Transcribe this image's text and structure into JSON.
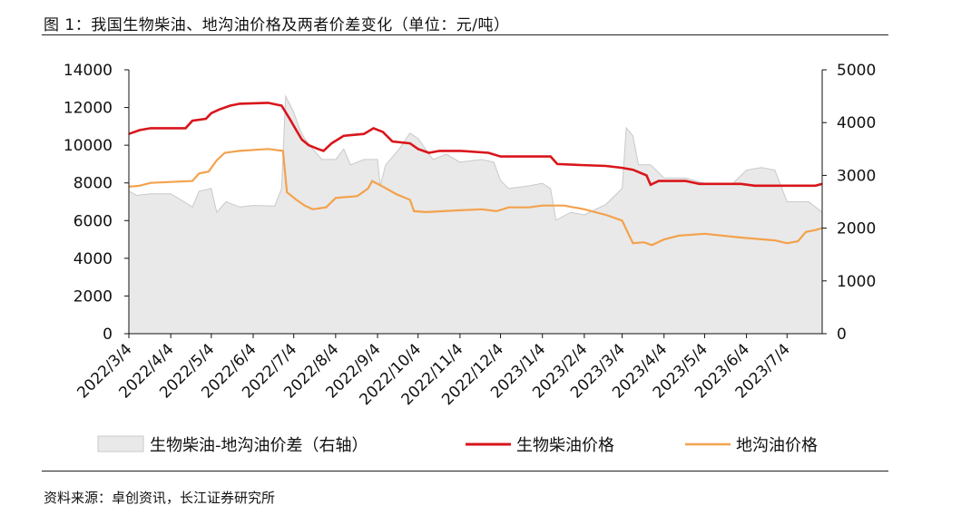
{
  "header": {
    "title": "图 1：我国生物柴油、地沟油价格及两者价差变化（单位：元/吨）"
  },
  "footer": {
    "source": "资料来源：卓创资讯，长江证券研究所"
  },
  "colors": {
    "biodiesel": "#d9151b",
    "waste_oil": "#f3a24d",
    "spread_fill": "#e9e9e9",
    "spread_edge": "#c9c9c9"
  },
  "chart_data": {
    "type": "line",
    "title": "图 1：我国生物柴油、地沟油价格及两者价差变化（单位：元/吨）",
    "x_tick_labels": [
      "2022/3/4",
      "2022/4/4",
      "2022/5/4",
      "2022/6/4",
      "2022/7/4",
      "2022/8/4",
      "2022/9/4",
      "2022/10/4",
      "2022/11/4",
      "2022/12/4",
      "2023/1/4",
      "2023/2/4",
      "2023/3/4",
      "2023/4/4",
      "2023/5/4",
      "2023/6/4",
      "2023/7/4"
    ],
    "x_range": [
      "2022/3/4",
      "2023/7/30"
    ],
    "y_left": {
      "ylim": [
        0,
        14000
      ],
      "ticks": [
        "0",
        "2000",
        "4000",
        "6000",
        "8000",
        "10000",
        "12000",
        "14000"
      ]
    },
    "y_right": {
      "ylim": [
        0,
        5000
      ],
      "ticks": [
        "0",
        "1000",
        "2000",
        "3000",
        "4000",
        "5000"
      ]
    },
    "grid": false,
    "legend_position": "bottom",
    "series": [
      {
        "name": "生物柴油-地沟油价差（右轴）",
        "type": "area",
        "axis": "right",
        "points": [
          [
            "2022/3/4",
            2700
          ],
          [
            "2022/3/10",
            2620
          ],
          [
            "2022/3/20",
            2650
          ],
          [
            "2022/4/4",
            2650
          ],
          [
            "2022/4/10",
            2560
          ],
          [
            "2022/4/20",
            2400
          ],
          [
            "2022/4/25",
            2700
          ],
          [
            "2022/5/4",
            2750
          ],
          [
            "2022/5/8",
            2300
          ],
          [
            "2022/5/15",
            2500
          ],
          [
            "2022/5/25",
            2400
          ],
          [
            "2022/6/4",
            2430
          ],
          [
            "2022/6/20",
            2420
          ],
          [
            "2022/6/25",
            2750
          ],
          [
            "2022/6/28",
            4500
          ],
          [
            "2022/7/4",
            4200
          ],
          [
            "2022/7/8",
            3900
          ],
          [
            "2022/7/12",
            3700
          ],
          [
            "2022/7/18",
            3500
          ],
          [
            "2022/7/25",
            3300
          ],
          [
            "2022/8/4",
            3300
          ],
          [
            "2022/8/10",
            3500
          ],
          [
            "2022/8/15",
            3200
          ],
          [
            "2022/8/25",
            3300
          ],
          [
            "2022/9/4",
            3300
          ],
          [
            "2022/9/6",
            2800
          ],
          [
            "2022/9/10",
            3200
          ],
          [
            "2022/9/20",
            3500
          ],
          [
            "2022/9/28",
            3800
          ],
          [
            "2022/10/4",
            3700
          ],
          [
            "2022/10/15",
            3300
          ],
          [
            "2022/10/25",
            3400
          ],
          [
            "2022/11/4",
            3250
          ],
          [
            "2022/11/20",
            3300
          ],
          [
            "2022/11/29",
            3250
          ],
          [
            "2022/12/4",
            2900
          ],
          [
            "2022/12/10",
            2750
          ],
          [
            "2022/12/25",
            2800
          ],
          [
            "2023/1/4",
            2850
          ],
          [
            "2023/1/10",
            2750
          ],
          [
            "2023/1/14",
            2150
          ],
          [
            "2023/1/25",
            2300
          ],
          [
            "2023/2/4",
            2250
          ],
          [
            "2023/2/20",
            2450
          ],
          [
            "2023/3/4",
            2750
          ],
          [
            "2023/3/7",
            3900
          ],
          [
            "2023/3/12",
            3750
          ],
          [
            "2023/3/16",
            3200
          ],
          [
            "2023/3/25",
            3200
          ],
          [
            "2023/4/4",
            2950
          ],
          [
            "2023/4/20",
            2950
          ],
          [
            "2023/5/4",
            2850
          ],
          [
            "2023/5/25",
            2850
          ],
          [
            "2023/6/4",
            3100
          ],
          [
            "2023/6/15",
            3150
          ],
          [
            "2023/6/25",
            3100
          ],
          [
            "2023/7/4",
            2500
          ],
          [
            "2023/7/20",
            2500
          ],
          [
            "2023/7/30",
            2300
          ]
        ]
      },
      {
        "name": "生物柴油价格",
        "type": "line",
        "axis": "left",
        "points": [
          [
            "2022/3/4",
            10600
          ],
          [
            "2022/3/12",
            10800
          ],
          [
            "2022/3/20",
            10900
          ],
          [
            "2022/4/15",
            10900
          ],
          [
            "2022/4/20",
            11300
          ],
          [
            "2022/4/30",
            11400
          ],
          [
            "2022/5/4",
            11700
          ],
          [
            "2022/5/10",
            11900
          ],
          [
            "2022/5/18",
            12100
          ],
          [
            "2022/5/25",
            12200
          ],
          [
            "2022/6/15",
            12250
          ],
          [
            "2022/6/25",
            12100
          ],
          [
            "2022/7/1",
            11400
          ],
          [
            "2022/7/5",
            10900
          ],
          [
            "2022/7/10",
            10300
          ],
          [
            "2022/7/15",
            10000
          ],
          [
            "2022/7/22",
            9800
          ],
          [
            "2022/7/26",
            9700
          ],
          [
            "2022/8/1",
            10100
          ],
          [
            "2022/8/10",
            10500
          ],
          [
            "2022/8/25",
            10600
          ],
          [
            "2022/9/1",
            10900
          ],
          [
            "2022/9/8",
            10700
          ],
          [
            "2022/9/15",
            10200
          ],
          [
            "2022/9/28",
            10100
          ],
          [
            "2022/10/4",
            9800
          ],
          [
            "2022/10/12",
            9600
          ],
          [
            "2022/10/20",
            9700
          ],
          [
            "2022/11/4",
            9700
          ],
          [
            "2022/11/25",
            9600
          ],
          [
            "2022/12/4",
            9400
          ],
          [
            "2022/12/30",
            9400
          ],
          [
            "2023/1/10",
            9400
          ],
          [
            "2023/1/15",
            9000
          ],
          [
            "2023/2/1",
            8950
          ],
          [
            "2023/2/20",
            8900
          ],
          [
            "2023/3/4",
            8800
          ],
          [
            "2023/3/12",
            8700
          ],
          [
            "2023/3/22",
            8400
          ],
          [
            "2023/3/25",
            7900
          ],
          [
            "2023/3/31",
            8100
          ],
          [
            "2023/4/20",
            8100
          ],
          [
            "2023/4/30",
            7950
          ],
          [
            "2023/5/31",
            7950
          ],
          [
            "2023/6/10",
            7850
          ],
          [
            "2023/7/25",
            7850
          ],
          [
            "2023/7/30",
            7950
          ]
        ]
      },
      {
        "name": "地沟油价格",
        "type": "line",
        "axis": "left",
        "points": [
          [
            "2022/3/4",
            7800
          ],
          [
            "2022/3/12",
            7850
          ],
          [
            "2022/3/20",
            8000
          ],
          [
            "2022/4/20",
            8100
          ],
          [
            "2022/4/25",
            8500
          ],
          [
            "2022/5/2",
            8600
          ],
          [
            "2022/5/8",
            9200
          ],
          [
            "2022/5/14",
            9600
          ],
          [
            "2022/5/25",
            9700
          ],
          [
            "2022/6/15",
            9800
          ],
          [
            "2022/6/26",
            9700
          ],
          [
            "2022/6/29",
            7500
          ],
          [
            "2022/7/6",
            7100
          ],
          [
            "2022/7/12",
            6800
          ],
          [
            "2022/7/18",
            6600
          ],
          [
            "2022/7/28",
            6700
          ],
          [
            "2022/8/4",
            7200
          ],
          [
            "2022/8/20",
            7300
          ],
          [
            "2022/8/28",
            7700
          ],
          [
            "2022/8/31",
            8100
          ],
          [
            "2022/9/8",
            7800
          ],
          [
            "2022/9/18",
            7400
          ],
          [
            "2022/9/28",
            7100
          ],
          [
            "2022/10/1",
            6500
          ],
          [
            "2022/10/10",
            6450
          ],
          [
            "2022/11/4",
            6550
          ],
          [
            "2022/11/20",
            6600
          ],
          [
            "2022/12/1",
            6500
          ],
          [
            "2022/12/10",
            6700
          ],
          [
            "2022/12/25",
            6700
          ],
          [
            "2023/1/4",
            6800
          ],
          [
            "2023/1/20",
            6800
          ],
          [
            "2023/2/4",
            6600
          ],
          [
            "2023/2/20",
            6300
          ],
          [
            "2023/3/4",
            6000
          ],
          [
            "2023/3/8",
            5400
          ],
          [
            "2023/3/12",
            4800
          ],
          [
            "2023/3/20",
            4850
          ],
          [
            "2023/3/26",
            4700
          ],
          [
            "2023/4/4",
            5000
          ],
          [
            "2023/4/15",
            5200
          ],
          [
            "2023/5/4",
            5300
          ],
          [
            "2023/5/31",
            5100
          ],
          [
            "2023/6/25",
            4950
          ],
          [
            "2023/7/4",
            4800
          ],
          [
            "2023/7/12",
            4900
          ],
          [
            "2023/7/18",
            5400
          ],
          [
            "2023/7/25",
            5500
          ],
          [
            "2023/7/30",
            5600
          ]
        ]
      }
    ]
  }
}
